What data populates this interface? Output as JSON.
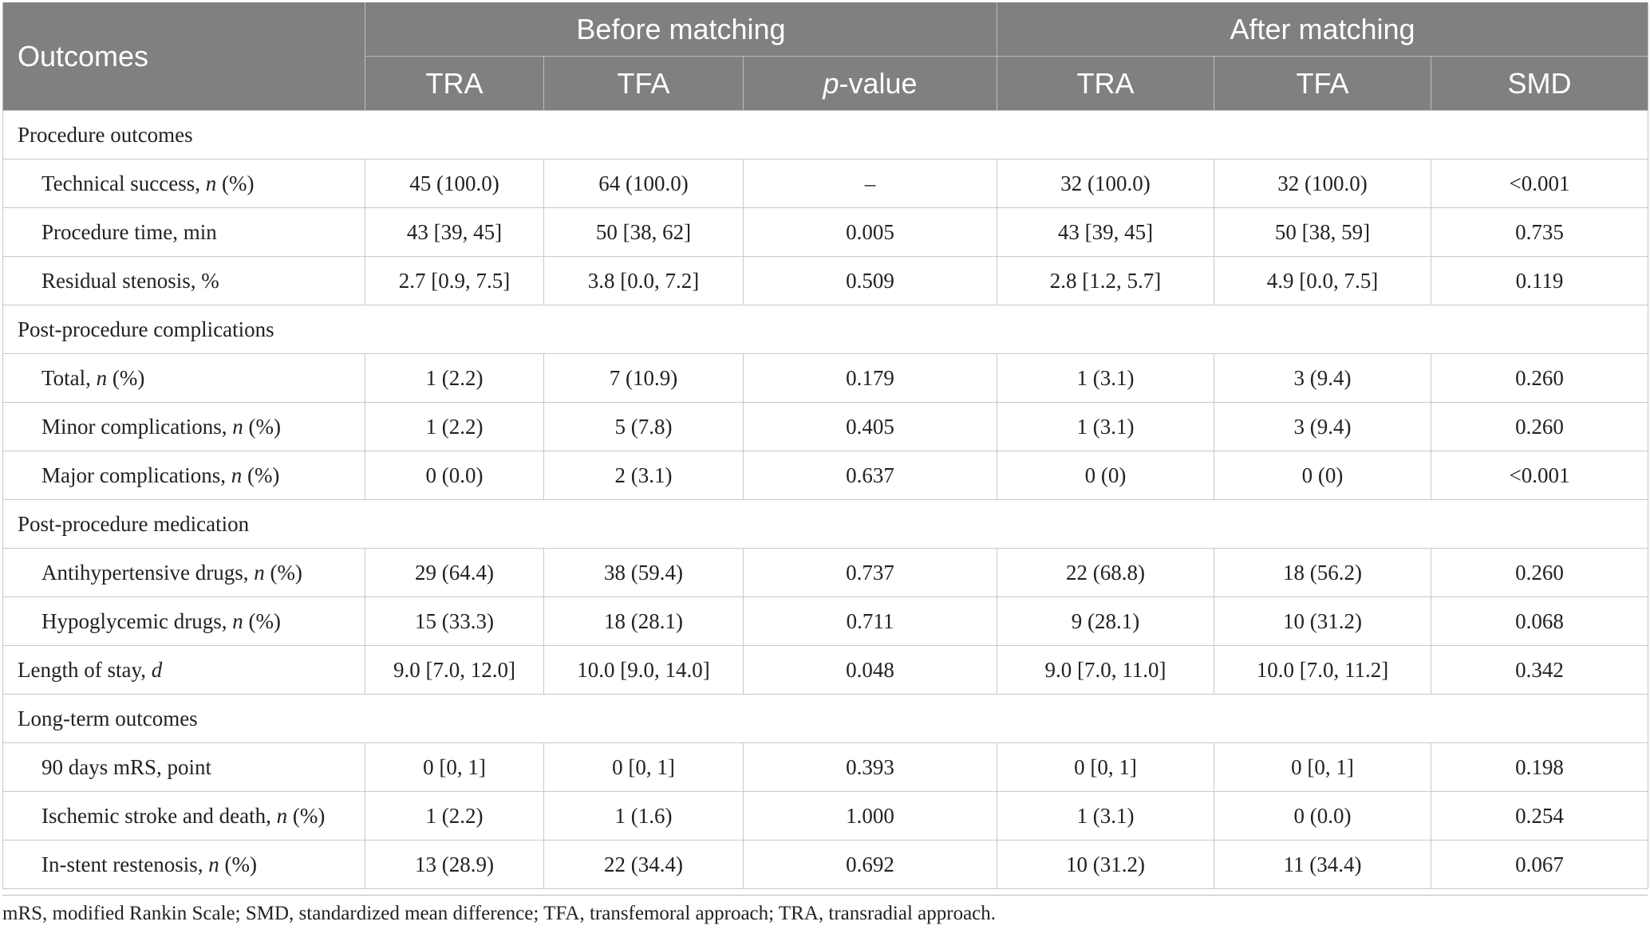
{
  "header": {
    "outcomes": "Outcomes",
    "before": "Before matching",
    "after": "After matching",
    "cols_before": [
      "TRA",
      "TFA",
      "p",
      "-value"
    ],
    "cols_after": [
      "TRA",
      "TFA",
      "SMD"
    ]
  },
  "rows": [
    {
      "type": "section",
      "label": "Procedure outcomes"
    },
    {
      "type": "data",
      "label": "Technical success, ",
      "italic": "n",
      "suffix": " (%)",
      "values": [
        "45 (100.0)",
        "64 (100.0)",
        "–",
        "32 (100.0)",
        "32 (100.0)",
        "<0.001"
      ]
    },
    {
      "type": "data",
      "label": "Procedure time, min",
      "italic": "",
      "suffix": "",
      "values": [
        "43 [39, 45]",
        "50 [38, 62]",
        "0.005",
        "43 [39, 45]",
        "50 [38, 59]",
        "0.735"
      ]
    },
    {
      "type": "data",
      "label": "Residual stenosis, %",
      "italic": "",
      "suffix": "",
      "values": [
        "2.7 [0.9, 7.5]",
        "3.8 [0.0, 7.2]",
        "0.509",
        "2.8 [1.2, 5.7]",
        "4.9 [0.0, 7.5]",
        "0.119"
      ]
    },
    {
      "type": "section",
      "label": "Post-procedure complications"
    },
    {
      "type": "data",
      "label": "Total, ",
      "italic": "n",
      "suffix": " (%)",
      "values": [
        "1 (2.2)",
        "7 (10.9)",
        "0.179",
        "1 (3.1)",
        "3 (9.4)",
        "0.260"
      ]
    },
    {
      "type": "data",
      "label": "Minor complications, ",
      "italic": "n",
      "suffix": " (%)",
      "values": [
        "1 (2.2)",
        "5 (7.8)",
        "0.405",
        "1 (3.1)",
        "3 (9.4)",
        "0.260"
      ]
    },
    {
      "type": "data",
      "label": "Major complications, ",
      "italic": "n",
      "suffix": " (%)",
      "values": [
        "0 (0.0)",
        "2 (3.1)",
        "0.637",
        "0 (0)",
        "0 (0)",
        "<0.001"
      ]
    },
    {
      "type": "section",
      "label": "Post-procedure medication"
    },
    {
      "type": "data",
      "label": "Antihypertensive drugs, ",
      "italic": "n",
      "suffix": " (%)",
      "values": [
        "29 (64.4)",
        "38 (59.4)",
        "0.737",
        "22 (68.8)",
        "18 (56.2)",
        "0.260"
      ]
    },
    {
      "type": "data",
      "label": "Hypoglycemic drugs, ",
      "italic": "n",
      "suffix": " (%)",
      "values": [
        "15 (33.3)",
        "18 (28.1)",
        "0.711",
        "9 (28.1)",
        "10 (31.2)",
        "0.068"
      ]
    },
    {
      "type": "top",
      "label": "Length of stay, ",
      "italic": "d",
      "suffix": "",
      "values": [
        "9.0 [7.0, 12.0]",
        "10.0 [9.0, 14.0]",
        "0.048",
        "9.0 [7.0, 11.0]",
        "10.0 [7.0, 11.2]",
        "0.342"
      ]
    },
    {
      "type": "section",
      "label": "Long-term outcomes"
    },
    {
      "type": "data",
      "label": "90 days mRS, point",
      "italic": "",
      "suffix": "",
      "values": [
        "0 [0, 1]",
        "0 [0, 1]",
        "0.393",
        "0 [0, 1]",
        "0 [0, 1]",
        "0.198"
      ]
    },
    {
      "type": "data",
      "label": "Ischemic stroke and death, ",
      "italic": "n",
      "suffix": " (%)",
      "values": [
        "1 (2.2)",
        "1 (1.6)",
        "1.000",
        "1 (3.1)",
        "0 (0.0)",
        "0.254"
      ]
    },
    {
      "type": "data",
      "label": "In-stent restenosis, ",
      "italic": "n",
      "suffix": " (%)",
      "values": [
        "13 (28.9)",
        "22 (34.4)",
        "0.692",
        "10 (31.2)",
        "11 (34.4)",
        "0.067"
      ]
    }
  ],
  "footnote": "mRS, modified Rankin Scale; SMD, standardized mean difference; TFA, transfemoral approach; TRA, transradial approach."
}
